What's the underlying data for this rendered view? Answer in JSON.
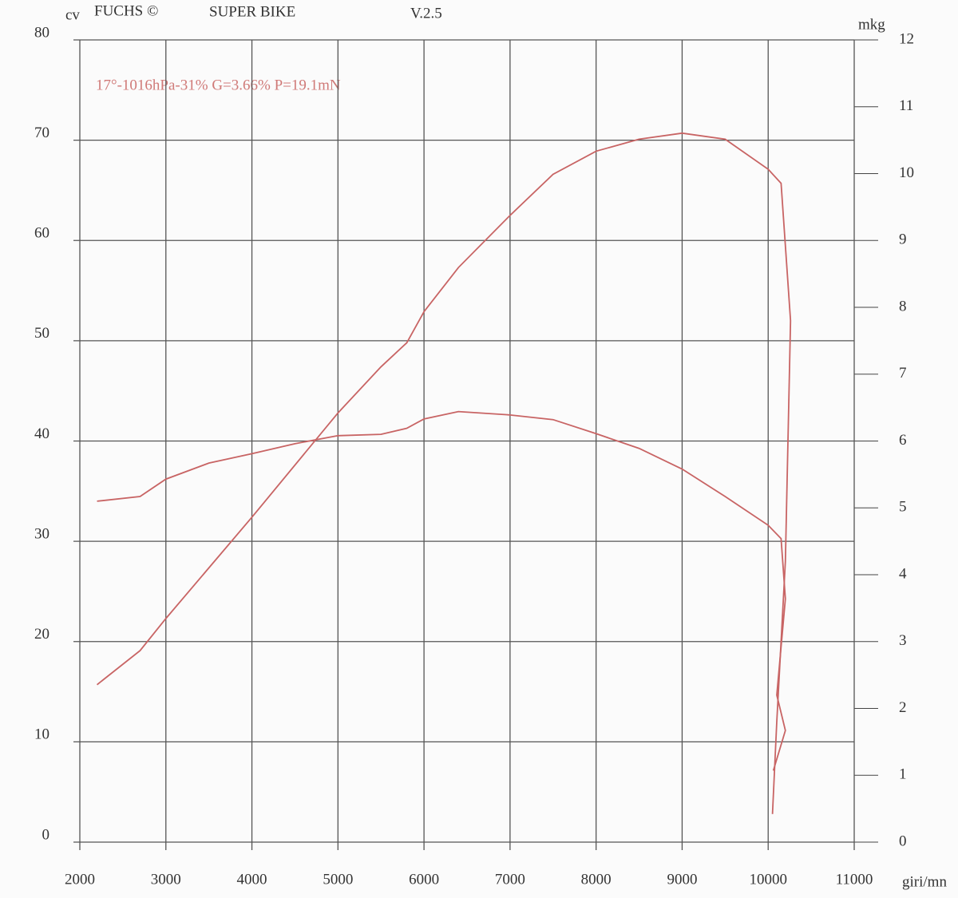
{
  "chart_data": {
    "type": "line",
    "header": [
      "FUCHS ©",
      "SUPER BIKE",
      "V.2.5"
    ],
    "annotation": "17°-1016hPa-31% G=3.66% P=19.1mN",
    "ylabel": "cv",
    "y2label": "mkg",
    "xlabel": "giri/mn",
    "xlim": [
      2000,
      11000
    ],
    "xticks": [
      2000,
      3000,
      4000,
      5000,
      6000,
      7000,
      8000,
      9000,
      10000,
      11000
    ],
    "ylim": [
      0,
      80
    ],
    "yticks": [
      0,
      10,
      20,
      30,
      40,
      50,
      60,
      70,
      80
    ],
    "y2lim": [
      0,
      12
    ],
    "y2ticks": [
      0,
      1,
      2,
      3,
      4,
      5,
      6,
      7,
      8,
      9,
      10,
      11,
      12
    ],
    "grid": true,
    "series": [
      {
        "color": "#c86464",
        "x": [
          2200,
          2700,
          3000,
          4000,
          5000,
          5500,
          5800,
          6000,
          6400,
          7000,
          7500,
          8000,
          8500,
          9000,
          9500,
          10000,
          10150,
          10260,
          10200,
          10100,
          10050
        ],
        "values": [
          15.7,
          19.1,
          22.3,
          32.4,
          42.8,
          47.4,
          49.8,
          52.9,
          57.3,
          62.5,
          66.6,
          68.9,
          70.1,
          70.7,
          70.1,
          67.1,
          65.7,
          52,
          28,
          12,
          2.8
        ]
      },
      {
        "color": "#c86464",
        "axis": "y2",
        "x": [
          2200,
          2700,
          3000,
          3500,
          4000,
          4500,
          5000,
          5500,
          5800,
          6000,
          6400,
          7000,
          7500,
          8000,
          8500,
          9000,
          9500,
          10000,
          10150,
          10200,
          10100,
          10200,
          10060
        ],
        "values": [
          5.1,
          5.17,
          5.43,
          5.67,
          5.81,
          5.96,
          6.08,
          6.1,
          6.19,
          6.33,
          6.44,
          6.39,
          6.32,
          6.11,
          5.89,
          5.58,
          5.17,
          4.74,
          4.54,
          3.64,
          2.2,
          1.67,
          1.07
        ]
      }
    ]
  }
}
